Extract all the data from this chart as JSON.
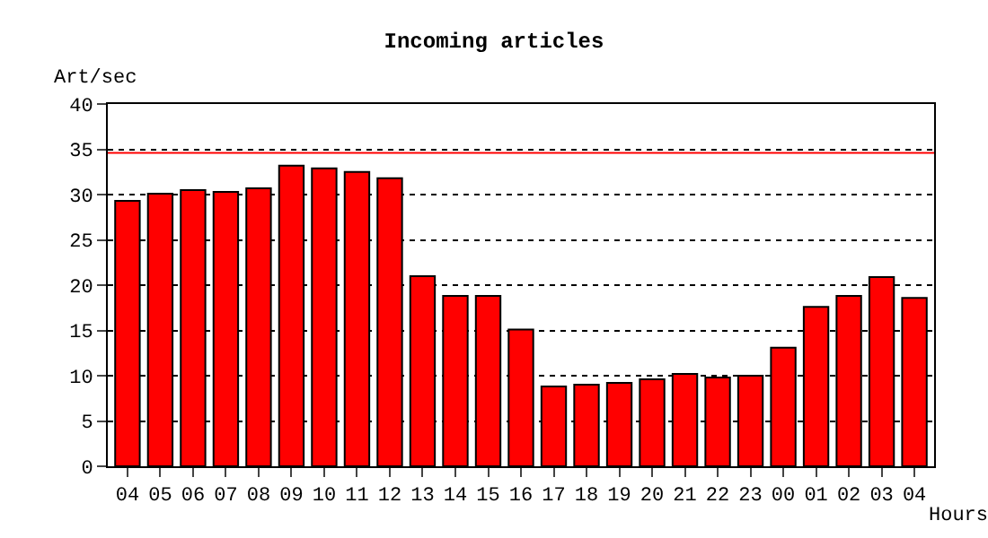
{
  "chart_data": {
    "type": "bar",
    "title": "Incoming articles",
    "xlabel": "Hours",
    "ylabel": "Art/sec",
    "categories": [
      "04",
      "05",
      "06",
      "07",
      "08",
      "09",
      "10",
      "11",
      "12",
      "13",
      "14",
      "15",
      "16",
      "17",
      "18",
      "19",
      "20",
      "21",
      "22",
      "23",
      "00",
      "01",
      "02",
      "03",
      "04"
    ],
    "values": [
      29.3,
      30.1,
      30.5,
      30.3,
      30.7,
      33.2,
      32.9,
      32.5,
      31.8,
      21.0,
      18.8,
      18.8,
      15.1,
      8.8,
      9.0,
      9.2,
      9.6,
      10.2,
      9.8,
      10.0,
      13.1,
      17.6,
      18.8,
      20.9,
      18.6
    ],
    "color": "#ff0000",
    "ylim": [
      0,
      40
    ],
    "yticks": [
      0,
      5,
      10,
      15,
      20,
      25,
      30,
      35,
      40
    ],
    "grid": "y",
    "ref_lines": [
      {
        "axis": "y",
        "value": 34.6,
        "color": "#ff0000"
      }
    ]
  }
}
